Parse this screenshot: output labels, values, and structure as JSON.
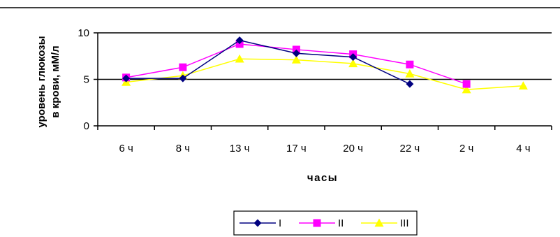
{
  "chart_data": {
    "type": "line",
    "categories": [
      "6 ч",
      "8 ч",
      "13 ч",
      "17 ч",
      "20 ч",
      "22 ч",
      "2 ч",
      "4 ч"
    ],
    "ylabel_line1": "уровень глюкозы",
    "ylabel_line2": "в крови, мМ/л",
    "xlabel": "часы",
    "ylim": [
      0,
      10
    ],
    "yticks": [
      0,
      5,
      10
    ],
    "grid": "horizontal",
    "legend_position": "bottom",
    "series": [
      {
        "name": "I",
        "color": "#000080",
        "marker": "diamond",
        "values": [
          5.1,
          5.1,
          9.2,
          7.8,
          7.4,
          4.5,
          null,
          null
        ]
      },
      {
        "name": "II",
        "color": "#ff00ff",
        "marker": "square",
        "values": [
          5.2,
          6.3,
          8.8,
          8.2,
          7.7,
          6.6,
          4.5,
          null
        ]
      },
      {
        "name": "III",
        "color": "#ffff00",
        "marker": "triangle",
        "values": [
          4.7,
          5.4,
          7.2,
          7.1,
          6.7,
          5.6,
          3.9,
          4.3
        ]
      }
    ]
  }
}
